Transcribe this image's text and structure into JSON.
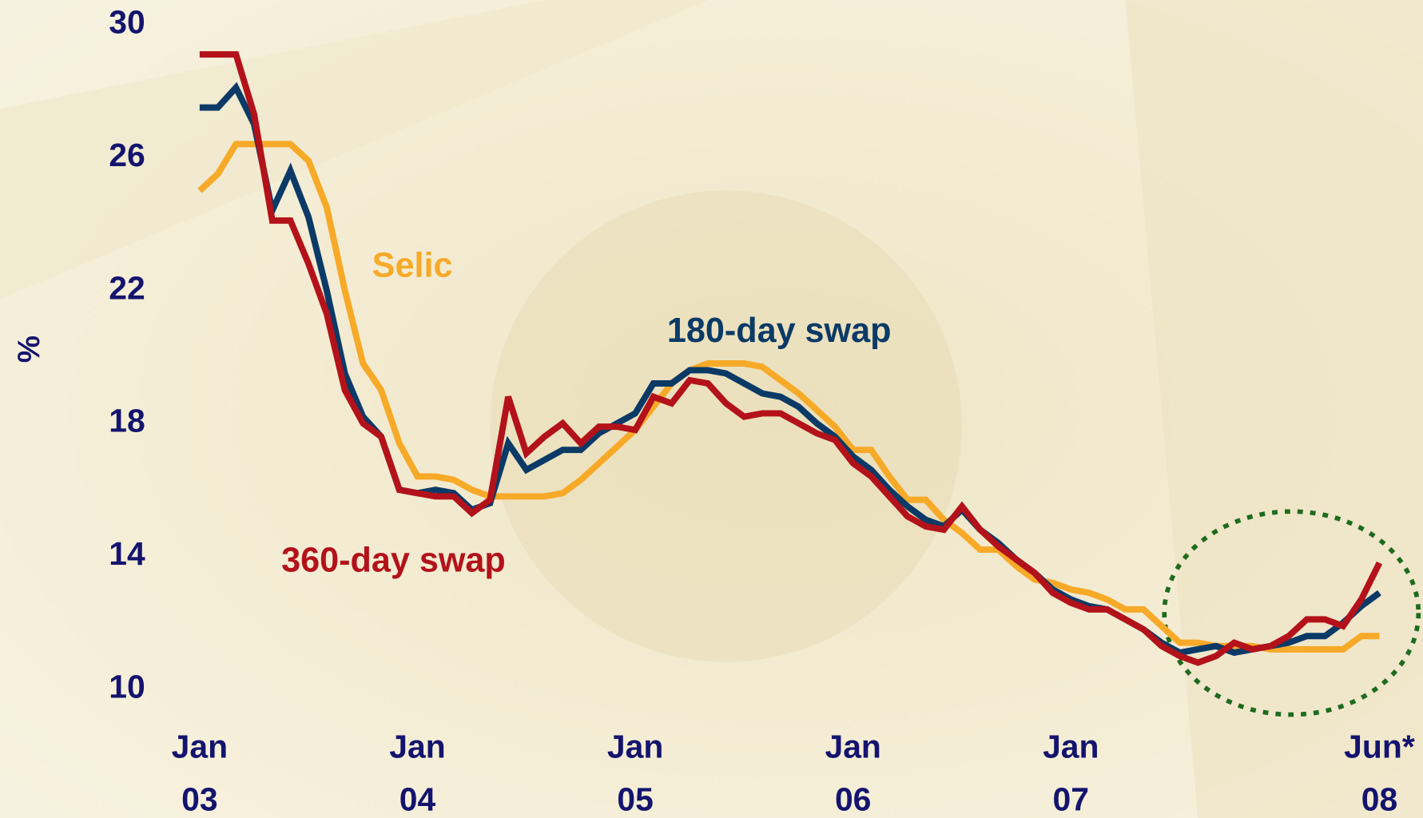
{
  "chart_data": {
    "type": "line",
    "y_label": "%",
    "categories": [
      "Jan 03",
      null,
      null,
      null,
      null,
      null,
      null,
      null,
      null,
      null,
      null,
      null,
      "Jan 04",
      null,
      null,
      null,
      null,
      null,
      null,
      null,
      null,
      null,
      null,
      null,
      "Jan 05",
      null,
      null,
      null,
      null,
      null,
      null,
      null,
      null,
      null,
      null,
      null,
      "Jan 06",
      null,
      null,
      null,
      null,
      null,
      null,
      null,
      null,
      null,
      null,
      null,
      "Jan 07",
      null,
      null,
      null,
      null,
      null,
      null,
      null,
      null,
      null,
      null,
      null,
      null,
      null,
      null,
      null,
      null,
      "Jun* 08"
    ],
    "ylim": [
      10,
      30
    ],
    "yticks": [
      10,
      14,
      18,
      22,
      26,
      30
    ],
    "grid": false,
    "series": [
      {
        "name": "Selic",
        "color": "#f7a928",
        "values": [
          25.0,
          25.5,
          26.4,
          26.4,
          26.4,
          26.4,
          25.9,
          24.5,
          22.0,
          19.8,
          19.0,
          17.4,
          16.4,
          16.4,
          16.3,
          16.0,
          15.8,
          15.8,
          15.8,
          15.8,
          15.9,
          16.3,
          16.8,
          17.3,
          17.8,
          18.5,
          19.2,
          19.6,
          19.8,
          19.8,
          19.8,
          19.7,
          19.3,
          18.9,
          18.4,
          17.9,
          17.2,
          17.2,
          16.4,
          15.7,
          15.7,
          15.1,
          14.7,
          14.2,
          14.2,
          13.7,
          13.3,
          13.2,
          13.0,
          12.9,
          12.7,
          12.4,
          12.4,
          11.9,
          11.4,
          11.4,
          11.3,
          11.3,
          11.3,
          11.2,
          11.2,
          11.2,
          11.2,
          11.2,
          11.6,
          11.6
        ]
      },
      {
        "name": "180-day swap",
        "color": "#0b3a66",
        "values": [
          27.5,
          27.5,
          28.1,
          27.0,
          24.4,
          25.6,
          24.2,
          22.0,
          19.5,
          18.2,
          17.6,
          16.0,
          15.9,
          16.0,
          15.9,
          15.4,
          15.6,
          17.4,
          16.6,
          16.9,
          17.2,
          17.2,
          17.7,
          18.0,
          18.3,
          19.2,
          19.2,
          19.6,
          19.6,
          19.5,
          19.2,
          18.9,
          18.8,
          18.5,
          18.0,
          17.6,
          17.0,
          16.6,
          16.0,
          15.5,
          15.1,
          14.9,
          15.4,
          14.8,
          14.4,
          13.9,
          13.5,
          13.0,
          12.7,
          12.5,
          12.4,
          12.1,
          11.8,
          11.4,
          11.1,
          11.2,
          11.3,
          11.1,
          11.2,
          11.3,
          11.4,
          11.6,
          11.6,
          12.0,
          12.5,
          12.9
        ]
      },
      {
        "name": "360-day swap",
        "color": "#b3121a",
        "values": [
          29.1,
          29.1,
          29.1,
          27.3,
          24.1,
          24.1,
          22.8,
          21.3,
          19.0,
          18.0,
          17.6,
          16.0,
          15.9,
          15.8,
          15.8,
          15.3,
          15.7,
          18.8,
          17.1,
          17.6,
          18.0,
          17.4,
          17.9,
          17.9,
          17.8,
          18.8,
          18.6,
          19.3,
          19.2,
          18.6,
          18.2,
          18.3,
          18.3,
          18.0,
          17.7,
          17.5,
          16.8,
          16.4,
          15.8,
          15.2,
          14.9,
          14.8,
          15.5,
          14.8,
          14.3,
          13.9,
          13.5,
          12.9,
          12.6,
          12.4,
          12.4,
          12.1,
          11.8,
          11.3,
          11.0,
          10.8,
          11.0,
          11.4,
          11.2,
          11.3,
          11.6,
          12.1,
          12.1,
          11.9,
          12.7,
          13.8
        ]
      }
    ]
  }
}
